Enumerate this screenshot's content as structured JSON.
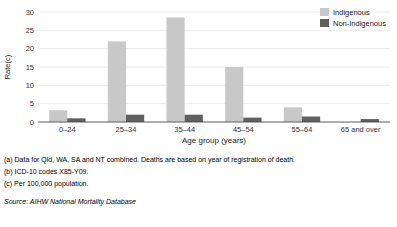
{
  "chart_data": {
    "type": "bar",
    "categories": [
      "0–24",
      "25–34",
      "35–44",
      "45–54",
      "55–64",
      "65 and over"
    ],
    "series": [
      {
        "name": "Indigenous",
        "color": "#c8c8c8",
        "values": [
          3.2,
          22.0,
          28.5,
          15.0,
          4.0,
          0.0
        ]
      },
      {
        "name": "Non-Indigenous",
        "color": "#606060",
        "values": [
          1.0,
          2.0,
          2.0,
          1.2,
          1.5,
          0.8
        ]
      }
    ],
    "x_label": "Age group (years)",
    "y_label": "Rate(c)",
    "ylim": [
      0,
      30
    ],
    "yticks": [
      0,
      5,
      10,
      15,
      20,
      25,
      30
    ],
    "grid": true,
    "legend": "upper right",
    "annotations": [
      "(a) Data for Qld, WA, SA and NT combined.  Deaths are based on year of registration of death.",
      "(b) ICD-10 codes X85-Y09.",
      "(c) Per 100,000 population.",
      "Source:  AIHW National Mortality Database"
    ]
  }
}
